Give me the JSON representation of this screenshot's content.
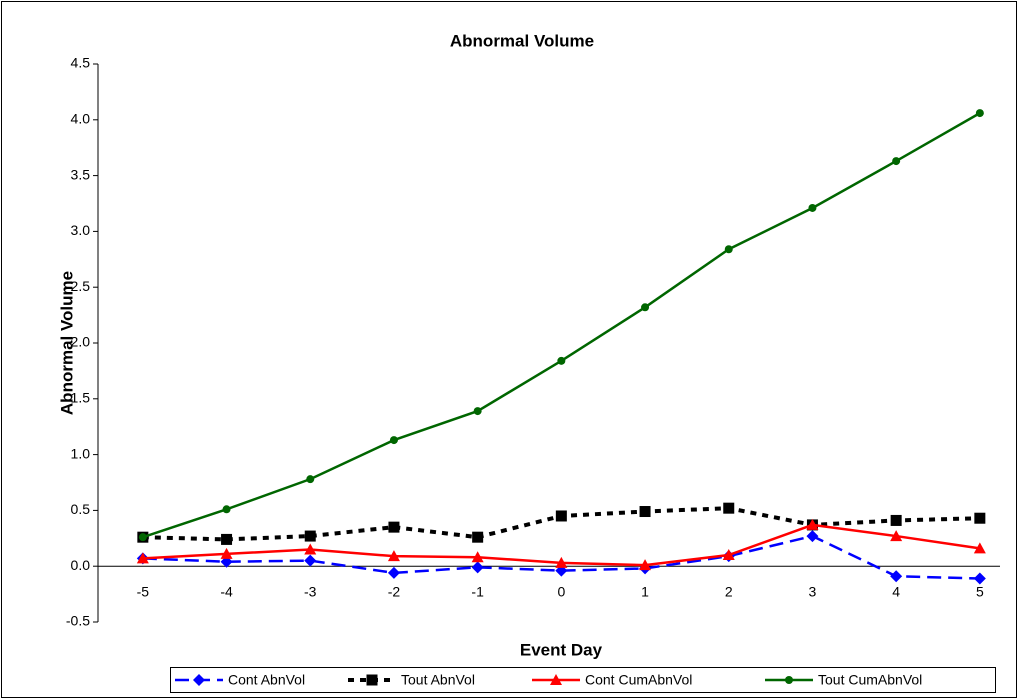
{
  "chart_data": {
    "type": "line",
    "title": "Abnormal Volume",
    "x_label": "Event Day",
    "y_label": "Abnormal Volume",
    "categories": [
      "-5",
      "-4",
      "-3",
      "-2",
      "-1",
      "0",
      "1",
      "2",
      "3",
      "4",
      "5"
    ],
    "ylim": [
      -0.5,
      4.5
    ],
    "yticks": [
      -0.5,
      {
        "value": 0,
        "label": "0.0"
      },
      0.5,
      {
        "value": 1,
        "label": "1.0"
      },
      1.5,
      {
        "value": 2,
        "label": "2.0"
      },
      2.5,
      {
        "value": 3,
        "label": "3.0"
      },
      3.5,
      {
        "value": 4,
        "label": "4.0"
      },
      4.5
    ],
    "series": [
      {
        "name": "Cont AbnVol",
        "color": "#0000ff",
        "marker": "diamond",
        "dash": "dashed",
        "values": [
          0.07,
          0.04,
          0.05,
          -0.06,
          -0.01,
          -0.04,
          -0.02,
          0.09,
          0.27,
          -0.09,
          -0.11
        ]
      },
      {
        "name": "Tout AbnVol",
        "color": "#000000",
        "marker": "square",
        "dash": "dotted",
        "values": [
          0.26,
          0.24,
          0.27,
          0.35,
          0.26,
          0.45,
          0.49,
          0.52,
          0.37,
          0.41,
          0.43
        ]
      },
      {
        "name": "Cont CumAbnVol",
        "color": "#ff0000",
        "marker": "triangle",
        "dash": "solid",
        "values": [
          0.07,
          0.11,
          0.15,
          0.09,
          0.08,
          0.03,
          0.01,
          0.1,
          0.37,
          0.27,
          0.16
        ]
      },
      {
        "name": "Tout CumAbnVol",
        "color": "#006600",
        "marker": "circle",
        "dash": "solid",
        "values": [
          0.26,
          0.51,
          0.78,
          1.13,
          1.39,
          1.84,
          2.32,
          2.84,
          3.21,
          3.63,
          4.06
        ]
      }
    ],
    "legend": "bottom"
  }
}
